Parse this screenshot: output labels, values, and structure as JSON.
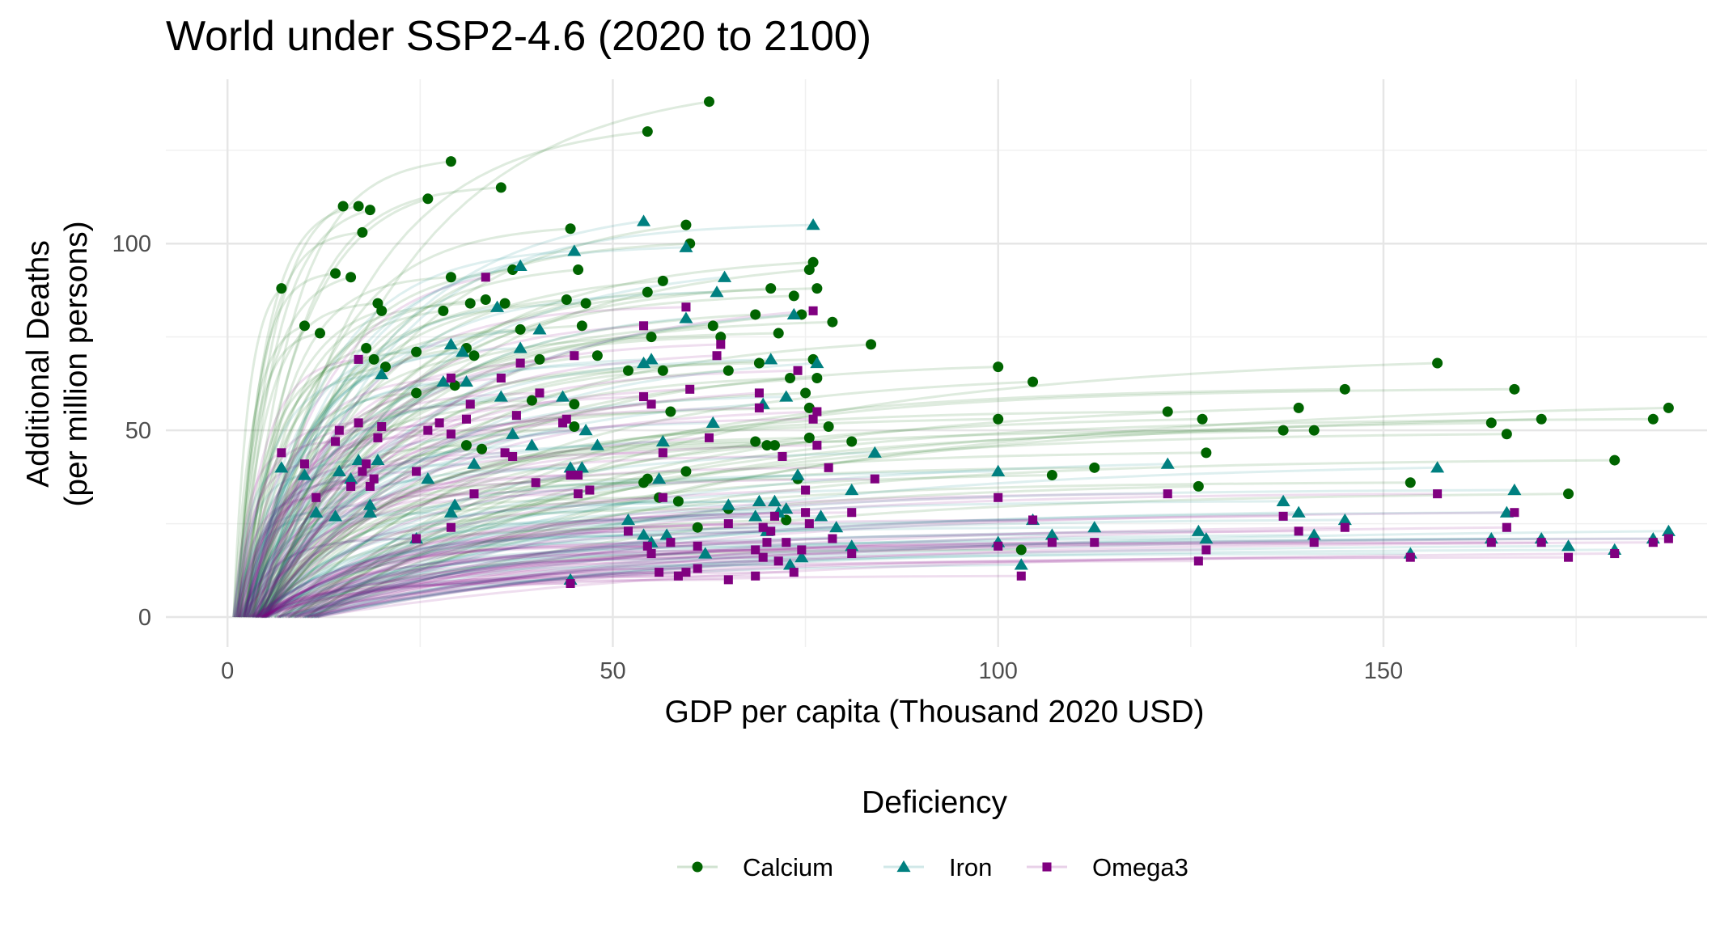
{
  "chart_data": {
    "type": "scatter",
    "title": "World under SSP2-4.6 (2020 to 2100)",
    "xlabel": "GDP per capita (Thousand 2020 USD)",
    "ylabel_lines": [
      "Additional Deaths",
      "(per million persons)"
    ],
    "xlim": [
      -8,
      192
    ],
    "ylim": [
      -8,
      144
    ],
    "x_ticks": [
      0,
      50,
      100,
      150
    ],
    "y_ticks": [
      0,
      50,
      100
    ],
    "grid": true,
    "legend_title": "Deficiency",
    "legend_position": "bottom",
    "series": [
      {
        "name": "Calcium",
        "marker": "circle",
        "color": "#006400",
        "endpoints": [
          [
            7,
            88
          ],
          [
            10,
            78
          ],
          [
            12,
            76
          ],
          [
            14,
            92
          ],
          [
            15,
            110
          ],
          [
            16,
            91
          ],
          [
            17,
            110
          ],
          [
            17.5,
            103
          ],
          [
            18,
            72
          ],
          [
            18.5,
            109
          ],
          [
            19,
            69
          ],
          [
            19.5,
            84
          ],
          [
            20,
            82
          ],
          [
            20.5,
            67
          ],
          [
            24.5,
            60
          ],
          [
            24.5,
            71
          ],
          [
            26,
            112
          ],
          [
            28,
            82
          ],
          [
            29,
            122
          ],
          [
            29,
            91
          ],
          [
            29.5,
            62
          ],
          [
            31,
            72
          ],
          [
            31,
            46
          ],
          [
            31.5,
            84
          ],
          [
            32,
            70
          ],
          [
            33,
            45
          ],
          [
            33.5,
            85
          ],
          [
            35.5,
            115
          ],
          [
            36,
            84
          ],
          [
            37,
            93
          ],
          [
            38,
            77
          ],
          [
            39.5,
            58
          ],
          [
            40.5,
            69
          ],
          [
            44,
            85
          ],
          [
            44.5,
            104
          ],
          [
            45,
            57
          ],
          [
            45,
            51
          ],
          [
            45.5,
            93
          ],
          [
            46,
            78
          ],
          [
            46.5,
            84
          ],
          [
            48,
            70
          ],
          [
            52,
            66
          ],
          [
            54,
            36
          ],
          [
            54.5,
            37
          ],
          [
            54.5,
            87
          ],
          [
            54.5,
            130
          ],
          [
            55,
            75
          ],
          [
            56,
            32
          ],
          [
            56.5,
            66
          ],
          [
            56.5,
            90
          ],
          [
            57.5,
            55
          ],
          [
            58.5,
            31
          ],
          [
            59.5,
            105
          ],
          [
            59.5,
            39
          ],
          [
            60,
            100
          ],
          [
            61,
            24
          ],
          [
            62.5,
            138
          ],
          [
            63,
            78
          ],
          [
            64,
            75
          ],
          [
            65,
            29
          ],
          [
            65,
            66
          ],
          [
            68.5,
            81
          ],
          [
            68.5,
            47
          ],
          [
            69,
            68
          ],
          [
            70,
            46
          ],
          [
            70.5,
            88
          ],
          [
            71,
            46
          ],
          [
            71.5,
            76
          ],
          [
            72.5,
            26
          ],
          [
            73,
            64
          ],
          [
            73.5,
            86
          ],
          [
            74,
            37
          ],
          [
            74.5,
            81
          ],
          [
            75,
            60
          ],
          [
            75.5,
            48
          ],
          [
            75.5,
            56
          ],
          [
            75.5,
            93
          ],
          [
            76,
            95
          ],
          [
            76,
            69
          ],
          [
            76.5,
            88
          ],
          [
            76.5,
            64
          ],
          [
            78,
            51
          ],
          [
            78.5,
            79
          ],
          [
            81,
            47
          ],
          [
            83.5,
            73
          ],
          [
            100,
            67
          ],
          [
            100,
            53
          ],
          [
            103,
            18
          ],
          [
            104.5,
            63
          ],
          [
            107,
            38
          ],
          [
            112.5,
            40
          ],
          [
            122,
            55
          ],
          [
            126,
            35
          ],
          [
            126.5,
            53
          ],
          [
            127,
            44
          ],
          [
            137,
            50
          ],
          [
            139,
            56
          ],
          [
            141,
            50
          ],
          [
            145,
            61
          ],
          [
            153.5,
            36
          ],
          [
            157,
            68
          ],
          [
            164,
            52
          ],
          [
            166,
            49
          ],
          [
            167,
            61
          ],
          [
            170.5,
            53
          ],
          [
            174,
            33
          ],
          [
            180,
            42
          ],
          [
            185,
            53
          ],
          [
            187,
            56
          ]
        ]
      },
      {
        "name": "Iron",
        "marker": "triangle",
        "color": "#008080",
        "endpoints": [
          [
            7,
            40
          ],
          [
            10,
            38
          ],
          [
            11.5,
            28
          ],
          [
            14,
            27
          ],
          [
            14.5,
            39
          ],
          [
            16,
            37
          ],
          [
            17,
            42
          ],
          [
            18.5,
            30
          ],
          [
            18.5,
            28
          ],
          [
            19.5,
            42
          ],
          [
            20,
            65
          ],
          [
            24.5,
            21
          ],
          [
            26,
            37
          ],
          [
            28,
            63
          ],
          [
            29,
            73
          ],
          [
            29,
            28
          ],
          [
            29.5,
            30
          ],
          [
            30.5,
            71
          ],
          [
            31,
            63
          ],
          [
            32,
            41
          ],
          [
            35,
            83
          ],
          [
            35.5,
            59
          ],
          [
            37,
            49
          ],
          [
            38,
            72
          ],
          [
            38,
            94
          ],
          [
            39.5,
            46
          ],
          [
            40.5,
            77
          ],
          [
            43.5,
            59
          ],
          [
            44.5,
            10
          ],
          [
            44.5,
            40
          ],
          [
            45,
            98
          ],
          [
            46,
            40
          ],
          [
            46.5,
            50
          ],
          [
            48,
            46
          ],
          [
            52,
            26
          ],
          [
            54,
            68
          ],
          [
            54,
            106
          ],
          [
            54,
            22
          ],
          [
            55,
            69
          ],
          [
            55,
            20
          ],
          [
            56,
            37
          ],
          [
            56.5,
            47
          ],
          [
            57,
            22
          ],
          [
            59.5,
            99
          ],
          [
            59.5,
            80
          ],
          [
            62,
            17
          ],
          [
            63,
            52
          ],
          [
            63.5,
            87
          ],
          [
            64.5,
            91
          ],
          [
            65,
            30
          ],
          [
            68.5,
            27
          ],
          [
            69,
            31
          ],
          [
            69.5,
            57
          ],
          [
            70,
            23
          ],
          [
            70.5,
            69
          ],
          [
            71,
            31
          ],
          [
            71.5,
            28
          ],
          [
            72.5,
            29
          ],
          [
            72.5,
            59
          ],
          [
            73,
            14
          ],
          [
            73.5,
            81
          ],
          [
            74,
            38
          ],
          [
            74.5,
            16
          ],
          [
            76,
            105
          ],
          [
            76.5,
            68
          ],
          [
            77,
            27
          ],
          [
            79,
            24
          ],
          [
            81,
            19
          ],
          [
            81,
            34
          ],
          [
            84,
            44
          ],
          [
            100,
            39
          ],
          [
            100,
            20
          ],
          [
            103,
            14
          ],
          [
            104.5,
            26
          ],
          [
            107,
            22
          ],
          [
            112.5,
            24
          ],
          [
            122,
            41
          ],
          [
            126,
            23
          ],
          [
            127,
            21
          ],
          [
            137,
            31
          ],
          [
            139,
            28
          ],
          [
            141,
            22
          ],
          [
            145,
            26
          ],
          [
            153.5,
            17
          ],
          [
            157,
            40
          ],
          [
            164,
            21
          ],
          [
            166,
            28
          ],
          [
            167,
            34
          ],
          [
            170.5,
            21
          ],
          [
            174,
            19
          ],
          [
            180,
            18
          ],
          [
            185,
            21
          ],
          [
            187,
            23
          ]
        ]
      },
      {
        "name": "Omega3",
        "marker": "square",
        "color": "#800080",
        "endpoints": [
          [
            7,
            44
          ],
          [
            10,
            41
          ],
          [
            11.5,
            32
          ],
          [
            14,
            47
          ],
          [
            14.5,
            50
          ],
          [
            16,
            35
          ],
          [
            17,
            69
          ],
          [
            17,
            52
          ],
          [
            17.5,
            39
          ],
          [
            18,
            41
          ],
          [
            18.5,
            35
          ],
          [
            19,
            37
          ],
          [
            19.5,
            48
          ],
          [
            20,
            51
          ],
          [
            24.5,
            39
          ],
          [
            24.5,
            21
          ],
          [
            26,
            50
          ],
          [
            27.5,
            52
          ],
          [
            29,
            64
          ],
          [
            29,
            49
          ],
          [
            29,
            24
          ],
          [
            31,
            53
          ],
          [
            31.5,
            57
          ],
          [
            32,
            33
          ],
          [
            33.5,
            91
          ],
          [
            35.5,
            64
          ],
          [
            36,
            44
          ],
          [
            37,
            43
          ],
          [
            37.5,
            54
          ],
          [
            38,
            68
          ],
          [
            40,
            36
          ],
          [
            40.5,
            60
          ],
          [
            43.5,
            52
          ],
          [
            44,
            53
          ],
          [
            44.5,
            38
          ],
          [
            44.5,
            9
          ],
          [
            45,
            70
          ],
          [
            45.5,
            38
          ],
          [
            45.5,
            33
          ],
          [
            47,
            34
          ],
          [
            52,
            23
          ],
          [
            54,
            78
          ],
          [
            54,
            59
          ],
          [
            54.5,
            19
          ],
          [
            55,
            57
          ],
          [
            55,
            17
          ],
          [
            56,
            12
          ],
          [
            56.5,
            44
          ],
          [
            56.5,
            32
          ],
          [
            57.5,
            20
          ],
          [
            58.5,
            11
          ],
          [
            59.5,
            83
          ],
          [
            59.5,
            12
          ],
          [
            60,
            61
          ],
          [
            61,
            13
          ],
          [
            61,
            19
          ],
          [
            62.5,
            48
          ],
          [
            63.5,
            70
          ],
          [
            64,
            73
          ],
          [
            65,
            10
          ],
          [
            65,
            25
          ],
          [
            68.5,
            18
          ],
          [
            68.5,
            11
          ],
          [
            69,
            56
          ],
          [
            69,
            60
          ],
          [
            69.5,
            24
          ],
          [
            69.5,
            16
          ],
          [
            70,
            20
          ],
          [
            70.5,
            23
          ],
          [
            71,
            27
          ],
          [
            71.5,
            15
          ],
          [
            72,
            43
          ],
          [
            72.5,
            20
          ],
          [
            73.5,
            12
          ],
          [
            74,
            66
          ],
          [
            74.5,
            18
          ],
          [
            75,
            34
          ],
          [
            75,
            28
          ],
          [
            75.5,
            25
          ],
          [
            76,
            53
          ],
          [
            76,
            82
          ],
          [
            76.5,
            55
          ],
          [
            76.5,
            46
          ],
          [
            78,
            40
          ],
          [
            78.5,
            21
          ],
          [
            81,
            17
          ],
          [
            81,
            28
          ],
          [
            84,
            37
          ],
          [
            100,
            32
          ],
          [
            100,
            19
          ],
          [
            103,
            11
          ],
          [
            104.5,
            26
          ],
          [
            107,
            20
          ],
          [
            112.5,
            20
          ],
          [
            122,
            33
          ],
          [
            126,
            15
          ],
          [
            127,
            18
          ],
          [
            137,
            27
          ],
          [
            139,
            23
          ],
          [
            141,
            20
          ],
          [
            145,
            24
          ],
          [
            153.5,
            16
          ],
          [
            157,
            33
          ],
          [
            164,
            20
          ],
          [
            166,
            24
          ],
          [
            167,
            28
          ],
          [
            170.5,
            20
          ],
          [
            174,
            16
          ],
          [
            180,
            17
          ],
          [
            185,
            20
          ],
          [
            187,
            21
          ]
        ]
      }
    ]
  }
}
